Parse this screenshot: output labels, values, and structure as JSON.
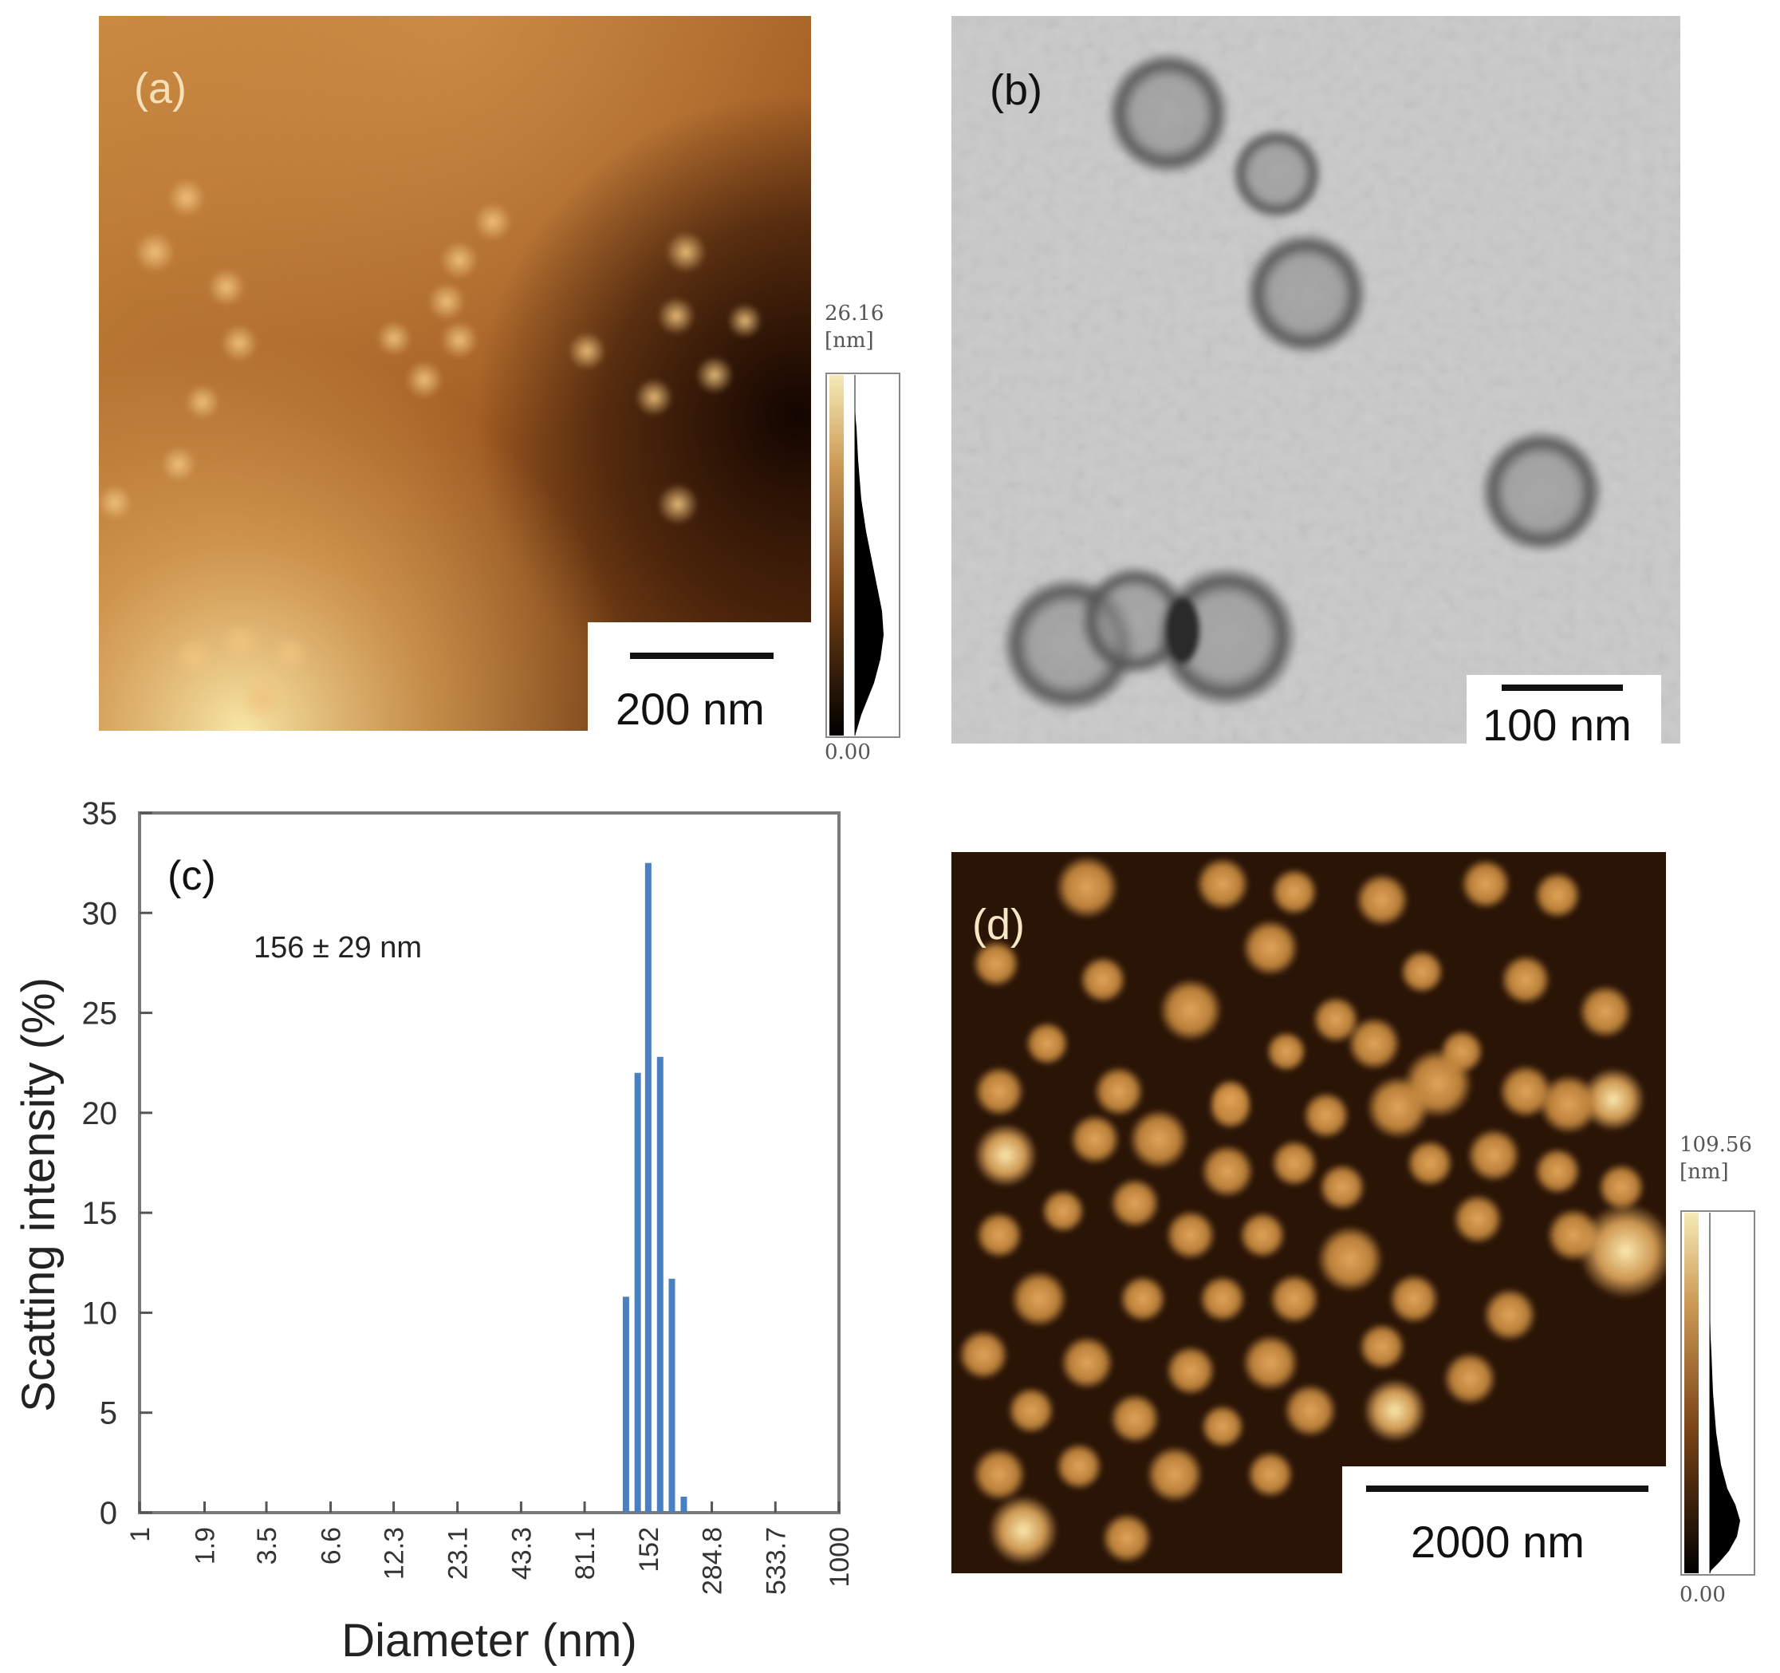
{
  "panel_a": {
    "label": "(a)",
    "scale_label": "200 nm",
    "colorbar": {
      "max": "26.16",
      "unit": "[nm]",
      "min": "0.00"
    },
    "colors": {
      "dark": "#1a0a02",
      "mid": "#a8642a",
      "bright": "#f2dc9a"
    }
  },
  "panel_b": {
    "label": "(b)",
    "scale_label": "100 nm",
    "colors": {
      "background": "#c8c8c8",
      "particle": "#6e6e6e"
    }
  },
  "panel_d": {
    "label": "(d)",
    "scale_label": "2000 nm",
    "colorbar": {
      "max": "109.56",
      "unit": "[nm]",
      "min": "0.00"
    },
    "colors": {
      "dark": "#1a0c03",
      "particle": "#c98b3f",
      "bright": "#f6e2a0"
    }
  },
  "chart_data": {
    "type": "bar",
    "panel_label": "(c)",
    "annotation": "156 ± 29 nm",
    "xlabel": "Diameter (nm)",
    "ylabel": "Scatting intensity (%)",
    "x_scale": "log",
    "xlim": [
      1,
      1000
    ],
    "ylim": [
      0,
      35
    ],
    "yticks": [
      0,
      5,
      10,
      15,
      20,
      25,
      30,
      35
    ],
    "xtick_labels": [
      "1",
      "1.9",
      "3.5",
      "6.6",
      "12.3",
      "23.1",
      "43.3",
      "81.1",
      "152",
      "284.8",
      "533.7",
      "1000"
    ],
    "grid": false,
    "bar_color": "#4a7fc1",
    "x": [
      122,
      137,
      152,
      171,
      192,
      216
    ],
    "values": [
      10.8,
      22.0,
      32.5,
      22.8,
      11.7,
      0.8
    ]
  }
}
